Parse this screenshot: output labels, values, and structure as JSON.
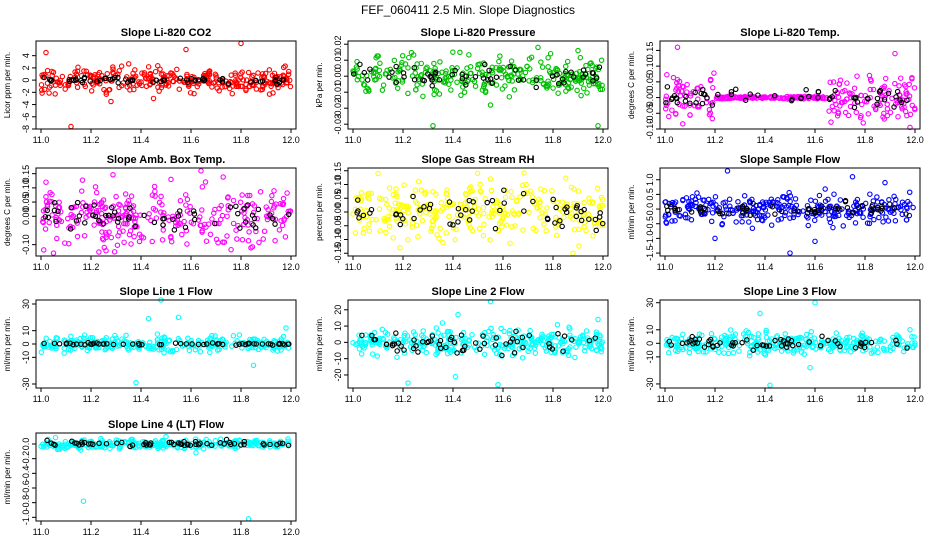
{
  "figure": {
    "title": "FEF_060411  2.5 Min. Slope Diagnostics"
  },
  "chart_data": [
    {
      "type": "scatter",
      "title": "Slope Li-820 CO2",
      "ylabel": "Licor ppm per min.",
      "xlim": [
        10.98,
        12.02
      ],
      "ylim": [
        -8.0,
        6.4
      ],
      "yticks": [
        -8,
        -6,
        -4,
        -2,
        0,
        2,
        4
      ],
      "ytick_labels": [
        "-8",
        "-6",
        "-4",
        "-2",
        "0",
        "2",
        "4"
      ],
      "xticks": [
        11.0,
        11.2,
        11.4,
        11.6,
        11.8,
        12.0
      ],
      "xtick_labels": [
        "11.0",
        "11.2",
        "11.4",
        "11.6",
        "11.8",
        "12.0"
      ],
      "series": [
        {
          "color": "#ff0000",
          "spread": 1.0,
          "outliers": [
            [
              11.02,
              4.5
            ],
            [
              11.12,
              -7.6
            ],
            [
              11.58,
              5.0
            ],
            [
              11.8,
              6.0
            ],
            [
              11.28,
              -3.5
            ],
            [
              11.45,
              -3.0
            ]
          ]
        },
        {
          "color": "#000000",
          "spread": 0.25,
          "outliers": []
        }
      ]
    },
    {
      "type": "scatter",
      "title": "Slope Li-820 Pressure",
      "ylabel": "kPa per min.",
      "xlim": [
        10.98,
        12.02
      ],
      "ylim": [
        -0.033,
        0.022
      ],
      "yticks": [
        -0.03,
        -0.02,
        -0.01,
        0.0,
        0.01,
        0.02
      ],
      "ytick_labels": [
        "-0.03",
        "-0.02",
        "-0.01",
        "0.00",
        "0.01",
        "0.02"
      ],
      "xticks": [
        11.0,
        11.2,
        11.4,
        11.6,
        11.8,
        12.0
      ],
      "xtick_labels": [
        "11.0",
        "11.2",
        "11.4",
        "11.6",
        "11.8",
        "12.0"
      ],
      "series": [
        {
          "color": "#00c000",
          "spread": 0.006,
          "outliers": [
            [
              11.32,
              -0.031
            ],
            [
              11.98,
              -0.031
            ],
            [
              11.74,
              0.018
            ],
            [
              11.9,
              0.016
            ],
            [
              11.55,
              -0.018
            ]
          ]
        },
        {
          "color": "#000000",
          "spread": 0.003,
          "outliers": []
        }
      ]
    },
    {
      "type": "scatter",
      "title": "Slope Li-820 Temp.",
      "ylabel": "degrees C per min.",
      "xlim": [
        10.98,
        12.02
      ],
      "ylim": [
        -0.1,
        0.18
      ],
      "yticks": [
        -0.1,
        -0.05,
        0.0,
        0.05,
        0.1,
        0.15
      ],
      "ytick_labels": [
        "-0.10",
        "-0.05",
        "0.00",
        "0.05",
        "0.10",
        "0.15"
      ],
      "xticks": [
        11.0,
        11.2,
        11.4,
        11.6,
        11.8,
        12.0
      ],
      "xtick_labels": [
        "11.0",
        "11.2",
        "11.4",
        "11.6",
        "11.8",
        "12.0"
      ],
      "series": [
        {
          "color": "#ff00ff",
          "spread": 0.04,
          "gap": [
            11.2,
            11.65
          ],
          "outliers": [
            [
              11.98,
              -0.095
            ],
            [
              11.05,
              0.16
            ],
            [
              11.92,
              0.14
            ]
          ]
        },
        {
          "color": "#000000",
          "spread": 0.015,
          "outliers": []
        }
      ]
    },
    {
      "type": "scatter",
      "title": "Slope Amb. Box Temp.",
      "ylabel": "degrees C per min.",
      "xlim": [
        10.98,
        12.02
      ],
      "ylim": [
        -0.14,
        0.17
      ],
      "yticks": [
        -0.1,
        0.0,
        0.05,
        0.1,
        0.15
      ],
      "ytick_labels": [
        "-0.10",
        "0.00",
        "0.05",
        "0.10",
        "0.15"
      ],
      "xticks": [
        11.0,
        11.2,
        11.4,
        11.6,
        11.8,
        12.0
      ],
      "xtick_labels": [
        "11.0",
        "11.2",
        "11.4",
        "11.6",
        "11.8",
        "12.0"
      ],
      "series": [
        {
          "color": "#ff00ff",
          "spread": 0.05,
          "outliers": [
            [
              11.64,
              0.16
            ],
            [
              11.05,
              -0.13
            ],
            [
              11.52,
              0.13
            ],
            [
              11.02,
              0.12
            ]
          ]
        },
        {
          "color": "#000000",
          "spread": 0.025,
          "outliers": []
        }
      ]
    },
    {
      "type": "scatter",
      "title": "Slope Gas Stream RH",
      "ylabel": "percent per min.",
      "xlim": [
        10.98,
        12.02
      ],
      "ylim": [
        -0.16,
        0.16
      ],
      "yticks": [
        -0.15,
        -0.1,
        -0.05,
        0.0,
        0.05,
        0.1,
        0.15
      ],
      "ytick_labels": [
        "-0.15",
        "-0.10",
        "-0.05",
        "0.00",
        "0.05",
        "0.10",
        "0.15"
      ],
      "xticks": [
        11.0,
        11.2,
        11.4,
        11.6,
        11.8,
        12.0
      ],
      "xtick_labels": [
        "11.0",
        "11.2",
        "11.4",
        "11.6",
        "11.8",
        "12.0"
      ],
      "series": [
        {
          "color": "#ffff00",
          "spread": 0.05,
          "outliers": [
            [
              11.1,
              0.14
            ],
            [
              11.88,
              -0.15
            ],
            [
              11.55,
              0.12
            ]
          ]
        },
        {
          "color": "#000000",
          "spread": 0.04,
          "outliers": []
        }
      ]
    },
    {
      "type": "scatter",
      "title": "Slope Sample Flow",
      "ylabel": "ml/min per min.",
      "xlim": [
        10.98,
        12.02
      ],
      "ylim": [
        -1.6,
        1.4
      ],
      "yticks": [
        -1.5,
        -1.0,
        -0.5,
        0.0,
        0.5,
        1.0
      ],
      "ytick_labels": [
        "-1.5",
        "-1.0",
        "-0.5",
        "0.0",
        "0.5",
        "1.0"
      ],
      "xticks": [
        11.0,
        11.2,
        11.4,
        11.6,
        11.8,
        12.0
      ],
      "xtick_labels": [
        "11.0",
        "11.2",
        "11.4",
        "11.6",
        "11.8",
        "12.0"
      ],
      "series": [
        {
          "color": "#0000ff",
          "spread": 0.25,
          "outliers": [
            [
              11.25,
              1.3
            ],
            [
              11.5,
              -1.5
            ],
            [
              11.75,
              1.1
            ],
            [
              11.2,
              -1.0
            ],
            [
              11.6,
              -1.1
            ],
            [
              11.88,
              0.9
            ]
          ]
        },
        {
          "color": "#000000",
          "spread": 0.1,
          "outliers": []
        }
      ]
    },
    {
      "type": "scatter",
      "title": "Slope Line 1 Flow",
      "ylabel": "ml/min per min.",
      "xlim": [
        10.98,
        12.02
      ],
      "ylim": [
        -33,
        33
      ],
      "yticks": [
        -30,
        -10,
        0,
        10,
        30
      ],
      "ytick_labels": [
        "-30",
        "-10",
        "0",
        "10",
        "30"
      ],
      "xticks": [
        11.0,
        11.2,
        11.4,
        11.6,
        11.8,
        12.0
      ],
      "xtick_labels": [
        "11.0",
        "11.2",
        "11.4",
        "11.6",
        "11.8",
        "12.0"
      ],
      "series": [
        {
          "color": "#00ffff",
          "spread": 3.0,
          "outliers": [
            [
              11.38,
              -29
            ],
            [
              11.48,
              33
            ],
            [
              11.85,
              -16
            ],
            [
              11.55,
              20
            ],
            [
              11.43,
              19
            ],
            [
              11.98,
              12
            ]
          ]
        },
        {
          "color": "#000000",
          "spread": 0.4,
          "outliers": []
        }
      ]
    },
    {
      "type": "scatter",
      "title": "Slope Line 2 Flow",
      "ylabel": "ml/min per min.",
      "xlim": [
        10.98,
        12.02
      ],
      "ylim": [
        -28,
        26
      ],
      "yticks": [
        -20,
        -10,
        0,
        10,
        20
      ],
      "ytick_labels": [
        "-20",
        "-10",
        "0",
        "10",
        "20"
      ],
      "xticks": [
        11.0,
        11.2,
        11.4,
        11.6,
        11.8,
        12.0
      ],
      "xtick_labels": [
        "11.0",
        "11.2",
        "11.4",
        "11.6",
        "11.8",
        "12.0"
      ],
      "series": [
        {
          "color": "#00ffff",
          "spread": 4.0,
          "outliers": [
            [
              11.22,
              -25
            ],
            [
              11.41,
              -21
            ],
            [
              11.58,
              -26
            ],
            [
              11.55,
              25
            ],
            [
              11.42,
              17
            ],
            [
              11.98,
              14
            ]
          ]
        },
        {
          "color": "#000000",
          "spread": 3.0,
          "outliers": []
        }
      ]
    },
    {
      "type": "scatter",
      "title": "Slope Line 3 Flow",
      "ylabel": "ml/min per min.",
      "xlim": [
        10.98,
        12.02
      ],
      "ylim": [
        -33,
        32
      ],
      "yticks": [
        -30,
        -10,
        0,
        10,
        30
      ],
      "ytick_labels": [
        "-30",
        "-10",
        "0",
        "10",
        "30"
      ],
      "xticks": [
        11.0,
        11.2,
        11.4,
        11.6,
        11.8,
        12.0
      ],
      "xtick_labels": [
        "11.0",
        "11.2",
        "11.4",
        "11.6",
        "11.8",
        "12.0"
      ],
      "series": [
        {
          "color": "#00ffff",
          "spread": 4.0,
          "outliers": [
            [
              11.42,
              -31
            ],
            [
              11.6,
              30
            ],
            [
              11.38,
              22
            ],
            [
              11.58,
              -18
            ],
            [
              11.98,
              10
            ]
          ]
        },
        {
          "color": "#000000",
          "spread": 2.5,
          "outliers": []
        }
      ]
    },
    {
      "type": "scatter",
      "title": "Slope Line 4 (LT) Flow",
      "ylabel": "ml/min per min.",
      "xlim": [
        10.98,
        12.02
      ],
      "ylim": [
        -1.05,
        0.15
      ],
      "yticks": [
        -1.0,
        -0.8,
        -0.6,
        -0.4,
        -0.2,
        0.0
      ],
      "ytick_labels": [
        "-1.0",
        "-0.8",
        "-0.6",
        "-0.4",
        "-0.2",
        "0.0"
      ],
      "xticks": [
        11.0,
        11.2,
        11.4,
        11.6,
        11.8,
        12.0
      ],
      "xtick_labels": [
        "11.0",
        "11.2",
        "11.4",
        "11.6",
        "11.8",
        "12.0"
      ],
      "series": [
        {
          "color": "#00ffff",
          "spread": 0.03,
          "outliers": [
            [
              11.17,
              -0.78
            ],
            [
              11.83,
              -1.02
            ],
            [
              11.5,
              0.1
            ],
            [
              11.62,
              -0.12
            ]
          ]
        },
        {
          "color": "#000000",
          "spread": 0.02,
          "outliers": []
        }
      ]
    }
  ]
}
